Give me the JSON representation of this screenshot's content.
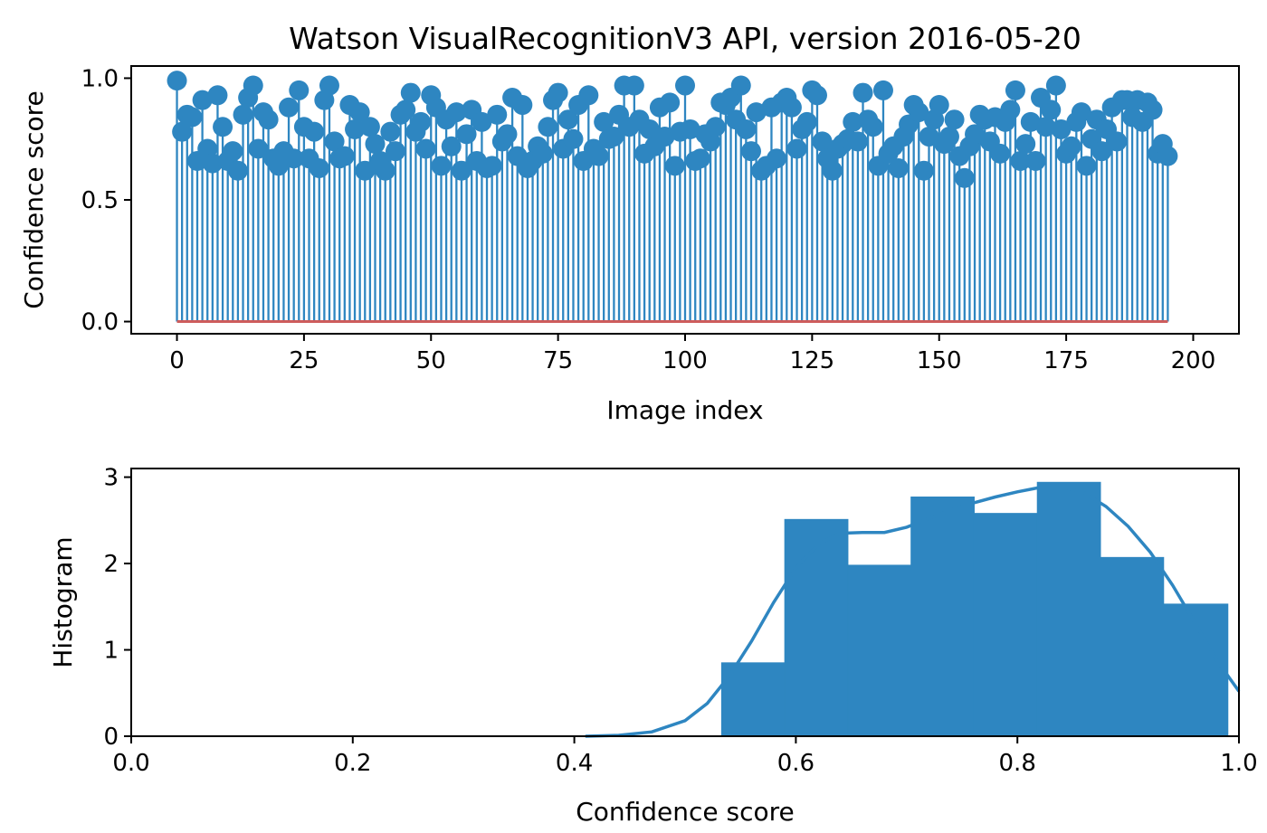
{
  "title": "Watson VisualRecognitionV3 API, version 2016-05-20",
  "colors": {
    "series": "#2e86c1",
    "baseline": "#cd5c5c",
    "axes": "#000000"
  },
  "chart_data": [
    {
      "type": "stem",
      "name": "confidence-per-image",
      "xlabel": "Image index",
      "ylabel": "Confidence score",
      "xlim": [
        -9,
        209
      ],
      "ylim": [
        -0.05,
        1.05
      ],
      "xticks": [
        0,
        25,
        50,
        75,
        100,
        125,
        150,
        175,
        200
      ],
      "xtick_labels": [
        "0",
        "25",
        "50",
        "75",
        "100",
        "125",
        "150",
        "175",
        "200"
      ],
      "yticks": [
        0.0,
        0.5,
        1.0
      ],
      "ytick_labels": [
        "0.0",
        "0.5",
        "1.0"
      ],
      "baseline": 0,
      "x_start": 0,
      "values": [
        0.99,
        0.78,
        0.85,
        0.84,
        0.66,
        0.91,
        0.71,
        0.65,
        0.93,
        0.8,
        0.66,
        0.7,
        0.62,
        0.85,
        0.92,
        0.97,
        0.71,
        0.86,
        0.83,
        0.67,
        0.64,
        0.7,
        0.88,
        0.67,
        0.95,
        0.8,
        0.67,
        0.78,
        0.63,
        0.91,
        0.97,
        0.74,
        0.67,
        0.68,
        0.89,
        0.79,
        0.86,
        0.62,
        0.8,
        0.73,
        0.66,
        0.62,
        0.78,
        0.7,
        0.85,
        0.87,
        0.94,
        0.78,
        0.82,
        0.71,
        0.93,
        0.88,
        0.64,
        0.83,
        0.72,
        0.86,
        0.62,
        0.77,
        0.87,
        0.66,
        0.82,
        0.63,
        0.64,
        0.85,
        0.74,
        0.77,
        0.92,
        0.68,
        0.89,
        0.63,
        0.66,
        0.72,
        0.69,
        0.8,
        0.91,
        0.94,
        0.71,
        0.83,
        0.75,
        0.89,
        0.66,
        0.93,
        0.71,
        0.68,
        0.82,
        0.75,
        0.76,
        0.85,
        0.97,
        0.8,
        0.97,
        0.83,
        0.69,
        0.79,
        0.72,
        0.88,
        0.76,
        0.9,
        0.64,
        0.78,
        0.97,
        0.79,
        0.66,
        0.67,
        0.77,
        0.74,
        0.8,
        0.9,
        0.89,
        0.92,
        0.83,
        0.97,
        0.79,
        0.7,
        0.86,
        0.62,
        0.64,
        0.88,
        0.67,
        0.9,
        0.92,
        0.88,
        0.71,
        0.79,
        0.82,
        0.95,
        0.93,
        0.74,
        0.67,
        0.62,
        0.71,
        0.73,
        0.75,
        0.82,
        0.74,
        0.94,
        0.83,
        0.8,
        0.64,
        0.95,
        0.69,
        0.72,
        0.63,
        0.76,
        0.81,
        0.89,
        0.86,
        0.62,
        0.76,
        0.83,
        0.89,
        0.73,
        0.76,
        0.83,
        0.68,
        0.59,
        0.72,
        0.77,
        0.85,
        0.83,
        0.74,
        0.84,
        0.69,
        0.82,
        0.87,
        0.95,
        0.66,
        0.73,
        0.82,
        0.66,
        0.92,
        0.8,
        0.87,
        0.97,
        0.79,
        0.69,
        0.72,
        0.82,
        0.86,
        0.64,
        0.75,
        0.83,
        0.7,
        0.79,
        0.88,
        0.74,
        0.91,
        0.91,
        0.84,
        0.91,
        0.82,
        0.9,
        0.87,
        0.69,
        0.73,
        0.68
      ]
    },
    {
      "type": "histogram",
      "name": "confidence-histogram",
      "xlabel": "Confidence score",
      "ylabel": "Histogram",
      "xlim": [
        0.0,
        1.0
      ],
      "ylim": [
        0,
        3.1
      ],
      "xticks": [
        0.0,
        0.2,
        0.4,
        0.6,
        0.8,
        1.0
      ],
      "xtick_labels": [
        "0.0",
        "0.2",
        "0.4",
        "0.6",
        "0.8",
        "1.0"
      ],
      "yticks": [
        0,
        1,
        2,
        3
      ],
      "ytick_labels": [
        "0",
        "1",
        "2",
        "3"
      ],
      "bins": [
        {
          "from": 0.533,
          "to": 0.59,
          "value": 0.85
        },
        {
          "from": 0.59,
          "to": 0.647,
          "value": 2.51
        },
        {
          "from": 0.647,
          "to": 0.704,
          "value": 1.98
        },
        {
          "from": 0.704,
          "to": 0.761,
          "value": 2.77
        },
        {
          "from": 0.761,
          "to": 0.818,
          "value": 2.58
        },
        {
          "from": 0.818,
          "to": 0.875,
          "value": 2.94
        },
        {
          "from": 0.875,
          "to": 0.932,
          "value": 2.07
        },
        {
          "from": 0.932,
          "to": 0.99,
          "value": 1.53
        }
      ],
      "kde": {
        "x": [
          0.41,
          0.44,
          0.47,
          0.5,
          0.52,
          0.54,
          0.56,
          0.58,
          0.6,
          0.62,
          0.64,
          0.66,
          0.68,
          0.7,
          0.72,
          0.74,
          0.76,
          0.78,
          0.8,
          0.82,
          0.84,
          0.86,
          0.88,
          0.9,
          0.92,
          0.94,
          0.96,
          0.98,
          1.0
        ],
        "y": [
          0.0,
          0.01,
          0.05,
          0.18,
          0.38,
          0.7,
          1.1,
          1.55,
          1.95,
          2.22,
          2.35,
          2.36,
          2.36,
          2.42,
          2.52,
          2.62,
          2.7,
          2.77,
          2.83,
          2.88,
          2.89,
          2.82,
          2.66,
          2.43,
          2.13,
          1.75,
          1.32,
          0.88,
          0.52
        ]
      }
    }
  ]
}
